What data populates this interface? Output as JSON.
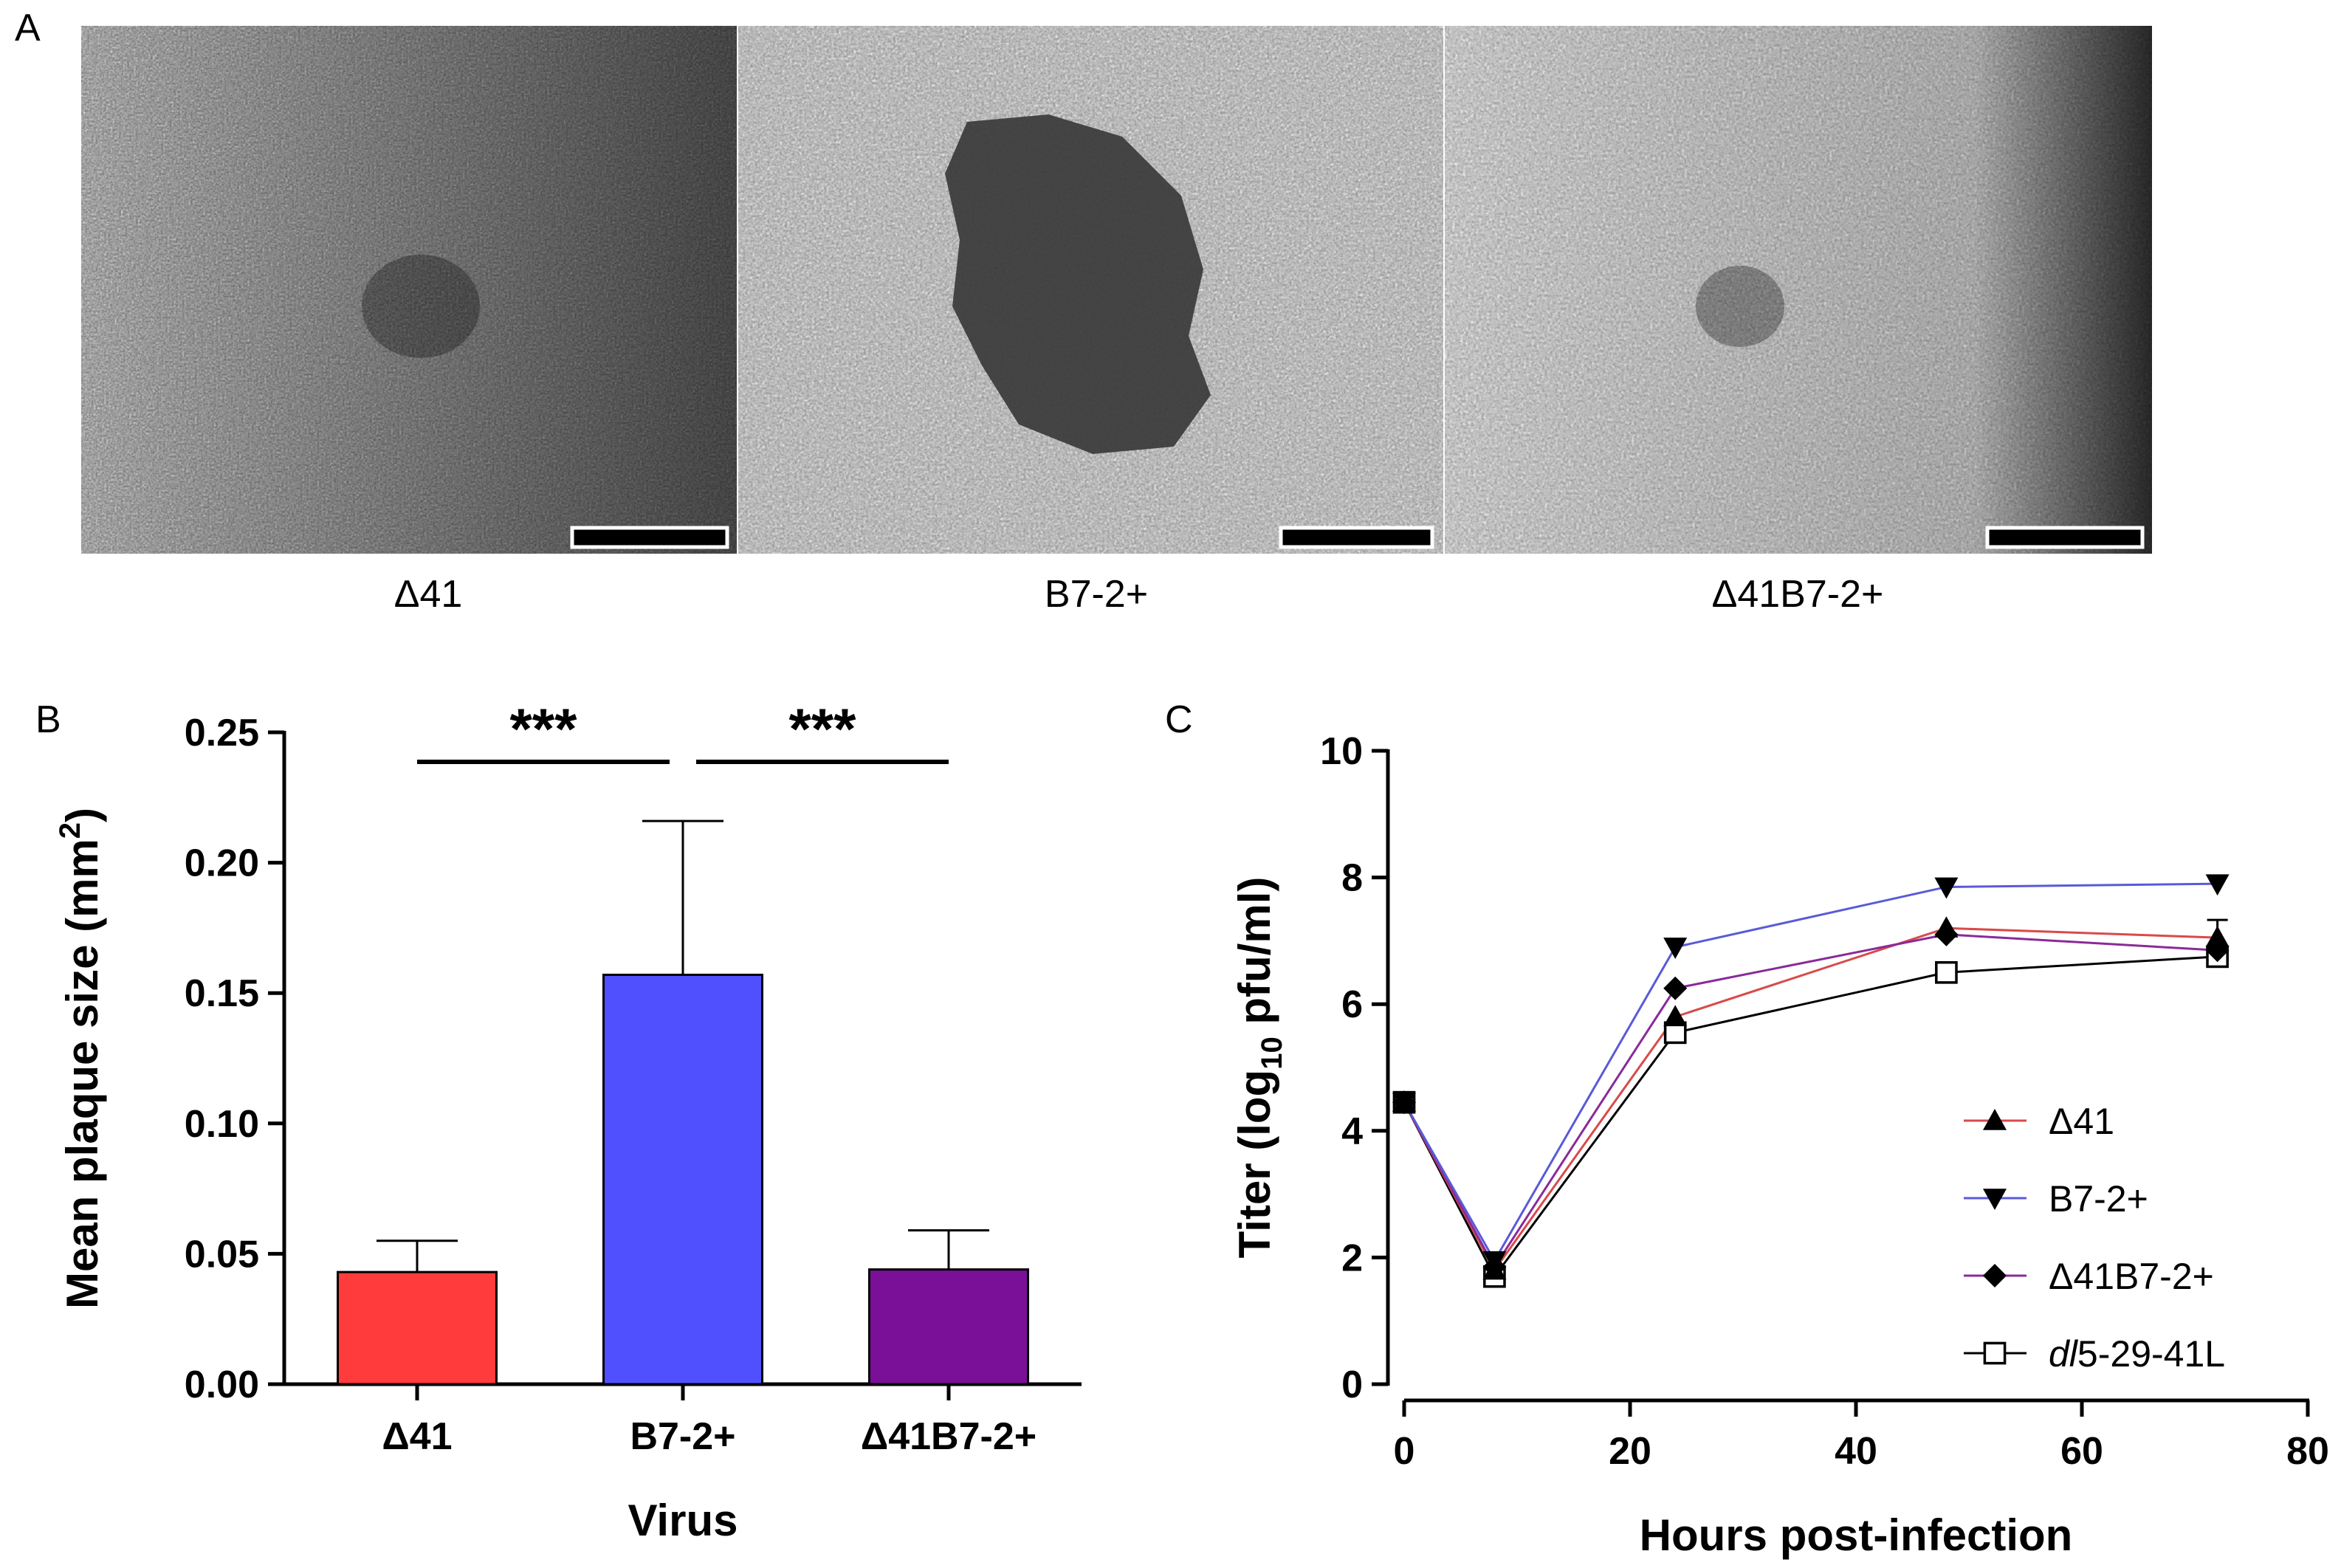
{
  "panel_a": {
    "label": "A",
    "images": [
      {
        "caption": "Δ41"
      },
      {
        "caption": "B7-2+"
      },
      {
        "caption": "Δ41B7-2+"
      }
    ]
  },
  "panel_b": {
    "label": "B",
    "significance": [
      "***",
      "***"
    ]
  },
  "panel_c": {
    "label": "C"
  },
  "chart_data": [
    {
      "type": "bar",
      "title": "",
      "xlabel": "Virus",
      "ylabel": "Mean plaque size (mm",
      "ylabel_sup": "2",
      "ylabel_end": ")",
      "categories": [
        "Δ41",
        "B7-2+",
        "Δ41B7-2+"
      ],
      "values": [
        0.043,
        0.157,
        0.044
      ],
      "error": [
        0.012,
        0.059,
        0.015
      ],
      "colors": [
        "#ff3b3b",
        "#5050ff",
        "#7a0f98"
      ],
      "ylim": [
        0,
        0.25
      ],
      "yticks": [
        "0.00",
        "0.05",
        "0.10",
        "0.15",
        "0.20",
        "0.25"
      ],
      "ytick_values": [
        0,
        0.05,
        0.1,
        0.15,
        0.2,
        0.25
      ],
      "significance": [
        {
          "from": 0,
          "to": 1,
          "label": "***"
        },
        {
          "from": 1,
          "to": 2,
          "label": "***"
        }
      ]
    },
    {
      "type": "line",
      "title": "",
      "xlabel": "Hours post-infection",
      "ylabel": "Titer (log",
      "ylabel_sub": "10",
      "ylabel_end": " pfu/ml)",
      "x": [
        0,
        8,
        24,
        48,
        72
      ],
      "xlim": [
        0,
        80
      ],
      "ylim": [
        0,
        10
      ],
      "xticks": [
        0,
        20,
        40,
        60,
        80
      ],
      "yticks": [
        0,
        2,
        4,
        6,
        8,
        10
      ],
      "legend_position": "bottom-right",
      "series": [
        {
          "name": "Δ41",
          "values": [
            4.45,
            1.8,
            5.8,
            7.2,
            7.05
          ],
          "color": "#d94a4a",
          "marker": "triangle-up"
        },
        {
          "name": "B7-2+",
          "values": [
            4.45,
            1.95,
            6.9,
            7.85,
            7.9
          ],
          "color": "#5a5ad8",
          "marker": "triangle-down"
        },
        {
          "name": "Δ41B7-2+",
          "values": [
            4.45,
            1.85,
            6.25,
            7.1,
            6.85
          ],
          "color": "#8a2a9a",
          "marker": "diamond"
        },
        {
          "name": "dl5-29-41L",
          "name_italic": "dl",
          "name_rest": "5-29-41L",
          "values": [
            4.45,
            1.7,
            5.55,
            6.5,
            6.75
          ],
          "color": "#000000",
          "marker": "square-open"
        }
      ]
    }
  ]
}
